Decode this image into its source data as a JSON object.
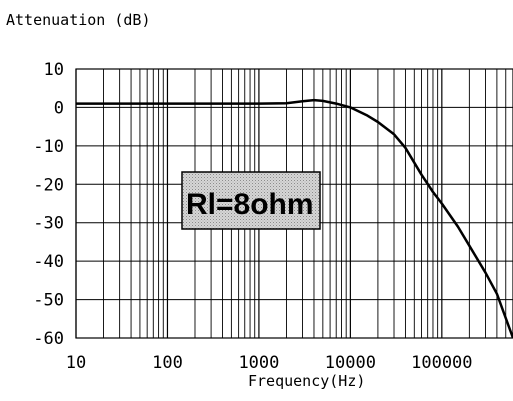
{
  "chart_data": {
    "type": "line",
    "title": "Attenuation (dB)",
    "xlabel": "Frequency(Hz)",
    "ylabel": "",
    "x_scale": "log",
    "xlim": [
      10,
      600000
    ],
    "ylim": [
      -60,
      10
    ],
    "x_ticks": [
      10,
      100,
      1000,
      10000,
      100000
    ],
    "x_tick_labels": [
      "10",
      "100",
      "1000",
      "10000",
      "100000"
    ],
    "y_ticks": [
      10,
      0,
      -10,
      -20,
      -30,
      -40,
      -50,
      -60
    ],
    "y_tick_labels": [
      "10",
      "0",
      "-10",
      "-20",
      "-30",
      "-40",
      "-50",
      "-60"
    ],
    "grid": true,
    "annotation": "Rl=8ohm",
    "series": [
      {
        "color": "#000000",
        "x": [
          10,
          100,
          500,
          1000,
          2000,
          3000,
          4000,
          5000,
          7000,
          10000,
          15000,
          20000,
          30000,
          40000,
          60000,
          80000,
          100000,
          150000,
          200000,
          300000,
          400000,
          600000
        ],
        "y": [
          1,
          1,
          1,
          1,
          1.1,
          1.6,
          1.9,
          1.7,
          1.0,
          0,
          -2,
          -3.8,
          -7,
          -10.5,
          -17.5,
          -22,
          -25,
          -31,
          -36,
          -43,
          -48.5,
          -60
        ]
      }
    ]
  }
}
